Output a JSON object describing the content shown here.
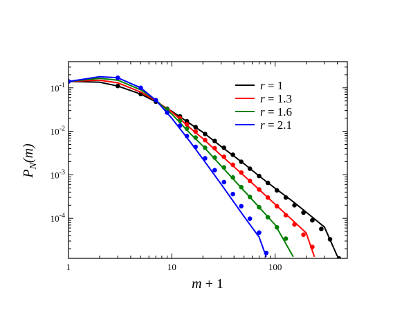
{
  "chart_data": {
    "type": "line",
    "title": "",
    "xlabel_main": "m",
    "xlabel_rest": " + 1",
    "ylabel_main": "P",
    "ylabel_sub": "N",
    "ylabel_rest": "(m)",
    "x_scale": "log",
    "y_scale": "log",
    "xlim": [
      1,
      500
    ],
    "ylim": [
      1.2e-05,
      0.4
    ],
    "grid": false,
    "legend_position": "top-right",
    "x_ticks": [
      {
        "value": 1,
        "label": "1"
      },
      {
        "value": 10,
        "label": "10"
      },
      {
        "value": 100,
        "label": "100"
      }
    ],
    "y_ticks": [
      {
        "value": 0.1,
        "base": "10",
        "exp": "-1"
      },
      {
        "value": 0.01,
        "base": "10",
        "exp": "-2"
      },
      {
        "value": 0.001,
        "base": "10",
        "exp": "-3"
      },
      {
        "value": 0.0001,
        "base": "10",
        "exp": "-4"
      }
    ],
    "series": [
      {
        "name": "r = 1",
        "color": "#000000",
        "line_x": [
          1,
          2,
          3,
          5,
          7,
          10,
          15,
          20,
          30,
          50,
          70,
          100,
          150,
          200,
          300,
          400
        ],
        "line_y": [
          0.14,
          0.135,
          0.11,
          0.072,
          0.048,
          0.029,
          0.015,
          0.0095,
          0.0045,
          0.0018,
          0.00094,
          0.00049,
          0.00024,
          0.000138,
          6.3e-05,
          1.35e-05
        ],
        "markers_x": [
          1,
          3,
          5,
          7,
          9,
          12,
          14,
          17,
          21,
          26,
          32,
          39,
          47,
          57,
          70,
          85,
          104,
          127,
          154,
          188,
          229,
          280,
          340,
          414
        ],
        "markers_y": [
          0.14,
          0.11,
          0.072,
          0.048,
          0.033,
          0.022,
          0.017,
          0.0125,
          0.0087,
          0.006,
          0.0042,
          0.0029,
          0.002,
          0.00138,
          0.00094,
          0.00065,
          0.00044,
          0.0003,
          0.0002,
          0.000135,
          9e-05,
          5.7e-05,
          3.3e-05,
          1.2e-05
        ]
      },
      {
        "name": "r = 1.3",
        "color": "#ff0000",
        "line_x": [
          1,
          2,
          3,
          5,
          7,
          10,
          15,
          20,
          30,
          50,
          70,
          100,
          150,
          200,
          240
        ],
        "line_y": [
          0.14,
          0.15,
          0.13,
          0.08,
          0.05,
          0.028,
          0.012,
          0.0068,
          0.0028,
          0.00095,
          0.00046,
          0.00021,
          8.7e-05,
          4.6e-05,
          1.3e-05
        ],
        "markers_x": [
          9,
          12,
          14,
          17,
          21,
          26,
          32,
          39,
          47,
          57,
          70,
          85,
          104,
          127,
          154,
          188,
          229
        ],
        "markers_y": [
          0.032,
          0.02,
          0.0145,
          0.0098,
          0.0063,
          0.0041,
          0.0026,
          0.0017,
          0.00113,
          0.00073,
          0.00046,
          0.0003,
          0.00019,
          0.000118,
          7.2e-05,
          4.2e-05,
          2.2e-05
        ]
      },
      {
        "name": "r = 1.6",
        "color": "#008000",
        "line_x": [
          1,
          2,
          3,
          5,
          7,
          10,
          15,
          20,
          30,
          50,
          70,
          100,
          150
        ],
        "line_y": [
          0.14,
          0.165,
          0.15,
          0.09,
          0.052,
          0.025,
          0.009,
          0.0046,
          0.0016,
          0.00043,
          0.00018,
          7.1e-05,
          1.3e-05
        ],
        "markers_x": [
          9,
          12,
          14,
          17,
          21,
          26,
          32,
          39,
          47,
          57,
          70,
          85,
          104,
          127
        ],
        "markers_y": [
          0.032,
          0.0175,
          0.0115,
          0.0072,
          0.0042,
          0.0025,
          0.00148,
          0.00087,
          0.00052,
          0.00031,
          0.00018,
          0.000106,
          6.2e-05,
          3.4e-05
        ]
      },
      {
        "name": "r = 2.1",
        "color": "#0000ff",
        "line_x": [
          1,
          2,
          3,
          5,
          7,
          10,
          15,
          20,
          30,
          50,
          70,
          82
        ],
        "line_y": [
          0.14,
          0.18,
          0.17,
          0.1,
          0.052,
          0.02,
          0.0058,
          0.0023,
          0.00061,
          0.00011,
          3.7e-05,
          1.3e-05
        ],
        "markers_x": [
          1,
          3,
          5,
          7,
          9,
          12,
          14,
          17,
          21,
          26,
          32,
          39,
          47,
          57,
          70,
          82
        ],
        "markers_y": [
          0.14,
          0.17,
          0.1,
          0.052,
          0.027,
          0.0135,
          0.0078,
          0.0044,
          0.0024,
          0.00128,
          0.00068,
          0.00036,
          0.00019,
          9.8e-05,
          4.7e-05,
          1.6e-05
        ]
      }
    ]
  }
}
